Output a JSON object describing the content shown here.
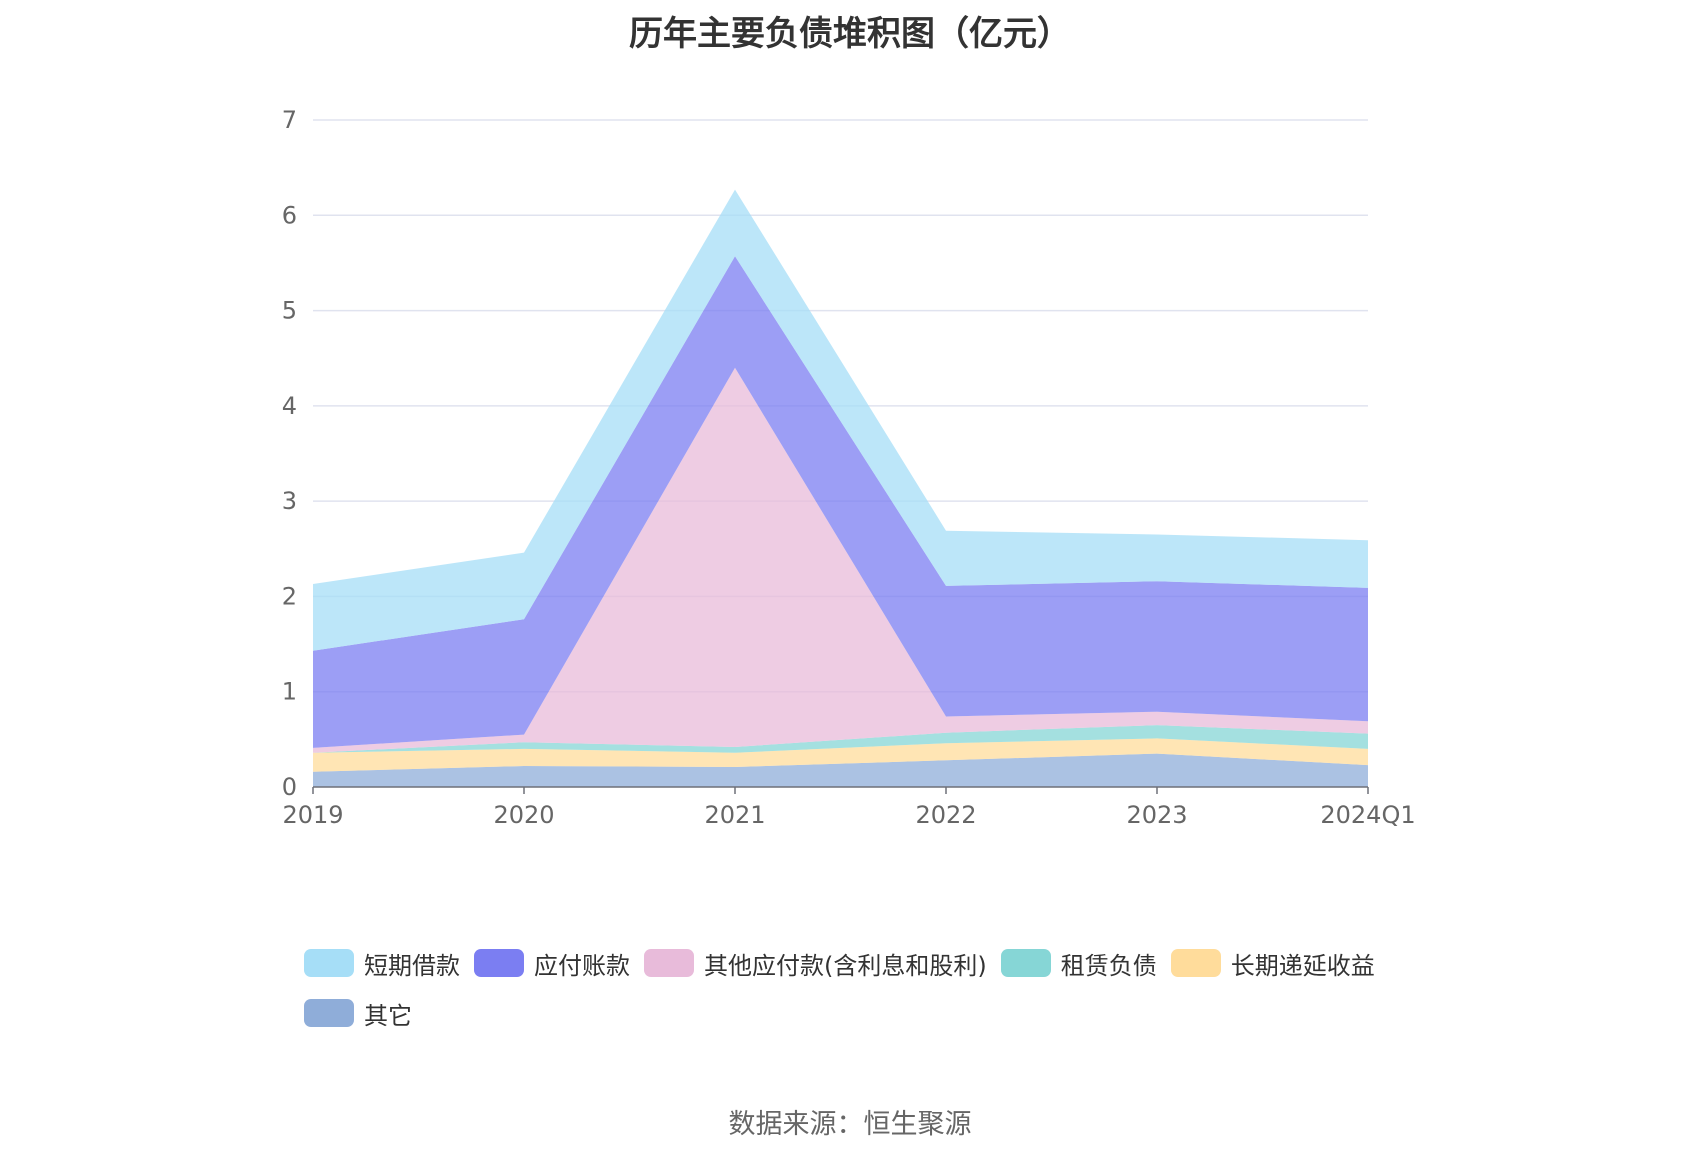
{
  "title": "历年主要负债堆积图（亿元）",
  "source": "数据来源：恒生聚源",
  "chart_data": {
    "type": "area",
    "stacked": true,
    "categories": [
      "2019",
      "2020",
      "2021",
      "2022",
      "2023",
      "2024Q1"
    ],
    "ylim": [
      0,
      7
    ],
    "yticks": [
      0,
      1,
      2,
      3,
      4,
      5,
      6,
      7
    ],
    "grid": true,
    "legend_position": "bottom",
    "series": [
      {
        "name": "其它",
        "color": "#8fadd9",
        "values": [
          0.16,
          0.22,
          0.21,
          0.28,
          0.35,
          0.23
        ]
      },
      {
        "name": "长期递延收益",
        "color": "#ffdc9b",
        "values": [
          0.2,
          0.18,
          0.15,
          0.18,
          0.16,
          0.17
        ]
      },
      {
        "name": "租赁负债",
        "color": "#86d6d6",
        "values": [
          0.0,
          0.07,
          0.06,
          0.11,
          0.14,
          0.16
        ]
      },
      {
        "name": "其他应付款(含利息和股利)",
        "color": "#e8bbda",
        "values": [
          0.05,
          0.08,
          3.98,
          0.17,
          0.14,
          0.13
        ]
      },
      {
        "name": "应付账款",
        "color": "#7b7ef2",
        "values": [
          1.02,
          1.21,
          1.17,
          1.37,
          1.37,
          1.4
        ]
      },
      {
        "name": "短期借款",
        "color": "#a6def7",
        "values": [
          0.7,
          0.7,
          0.7,
          0.58,
          0.49,
          0.5
        ]
      }
    ],
    "legend_order": [
      "短期借款",
      "应付账款",
      "其他应付款(含利息和股利)",
      "租赁负债",
      "长期递延收益",
      "其它"
    ]
  }
}
